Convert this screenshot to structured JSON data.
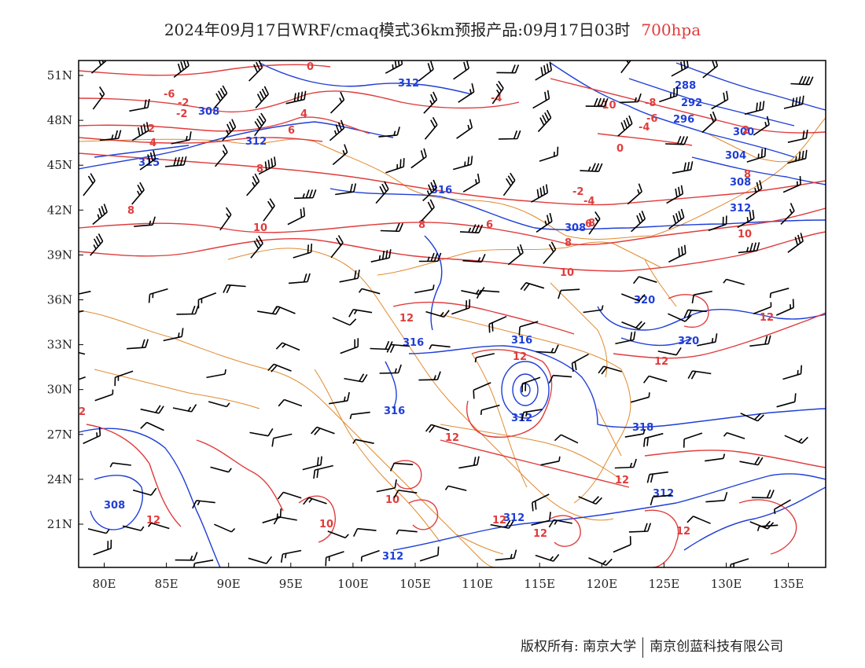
{
  "title": {
    "main": "2024年09月17日WRF/cmaq模式36km预报产品:09月17日03时",
    "level": "700hpa"
  },
  "colors": {
    "temperature": "#e03c3c",
    "geopotential": "#1f3ed6",
    "boundary": "#e08a2e",
    "wind_barb": "#000000",
    "level_label": "#e03c3c"
  },
  "map": {
    "lon_ticks": [
      "80E",
      "85E",
      "90E",
      "95E",
      "100E",
      "105E",
      "110E",
      "115E",
      "120E",
      "125E",
      "130E",
      "135E"
    ],
    "lat_ticks": [
      "51N",
      "48N",
      "45N",
      "42N",
      "39N",
      "36N",
      "33N",
      "30N",
      "27N",
      "24N",
      "21N"
    ],
    "geopotential_labels": [
      "312",
      "308",
      "312",
      "315",
      "316",
      "288",
      "292",
      "296",
      "300",
      "304",
      "308",
      "312",
      "308",
      "320",
      "316",
      "320",
      "316",
      "312",
      "318",
      "316",
      "312",
      "312",
      "308",
      "312"
    ],
    "temperature_labels": [
      "0",
      "-6",
      "-2",
      "-2",
      "2",
      "4",
      "6",
      "4",
      "8",
      "8",
      "10",
      "8",
      "-4",
      "-10",
      "-8",
      "-6",
      "-4",
      "0",
      "-2",
      "2",
      "8",
      "-4",
      "6",
      "8",
      "10",
      "10",
      "12",
      "12",
      "12",
      "12",
      "12",
      "12",
      "12",
      "10",
      "10",
      "12",
      "12",
      "12",
      "2",
      "6",
      "8"
    ]
  },
  "footer": {
    "copyright": "版权所有: 南京大学",
    "company": "南京创蓝科技有限公司"
  }
}
